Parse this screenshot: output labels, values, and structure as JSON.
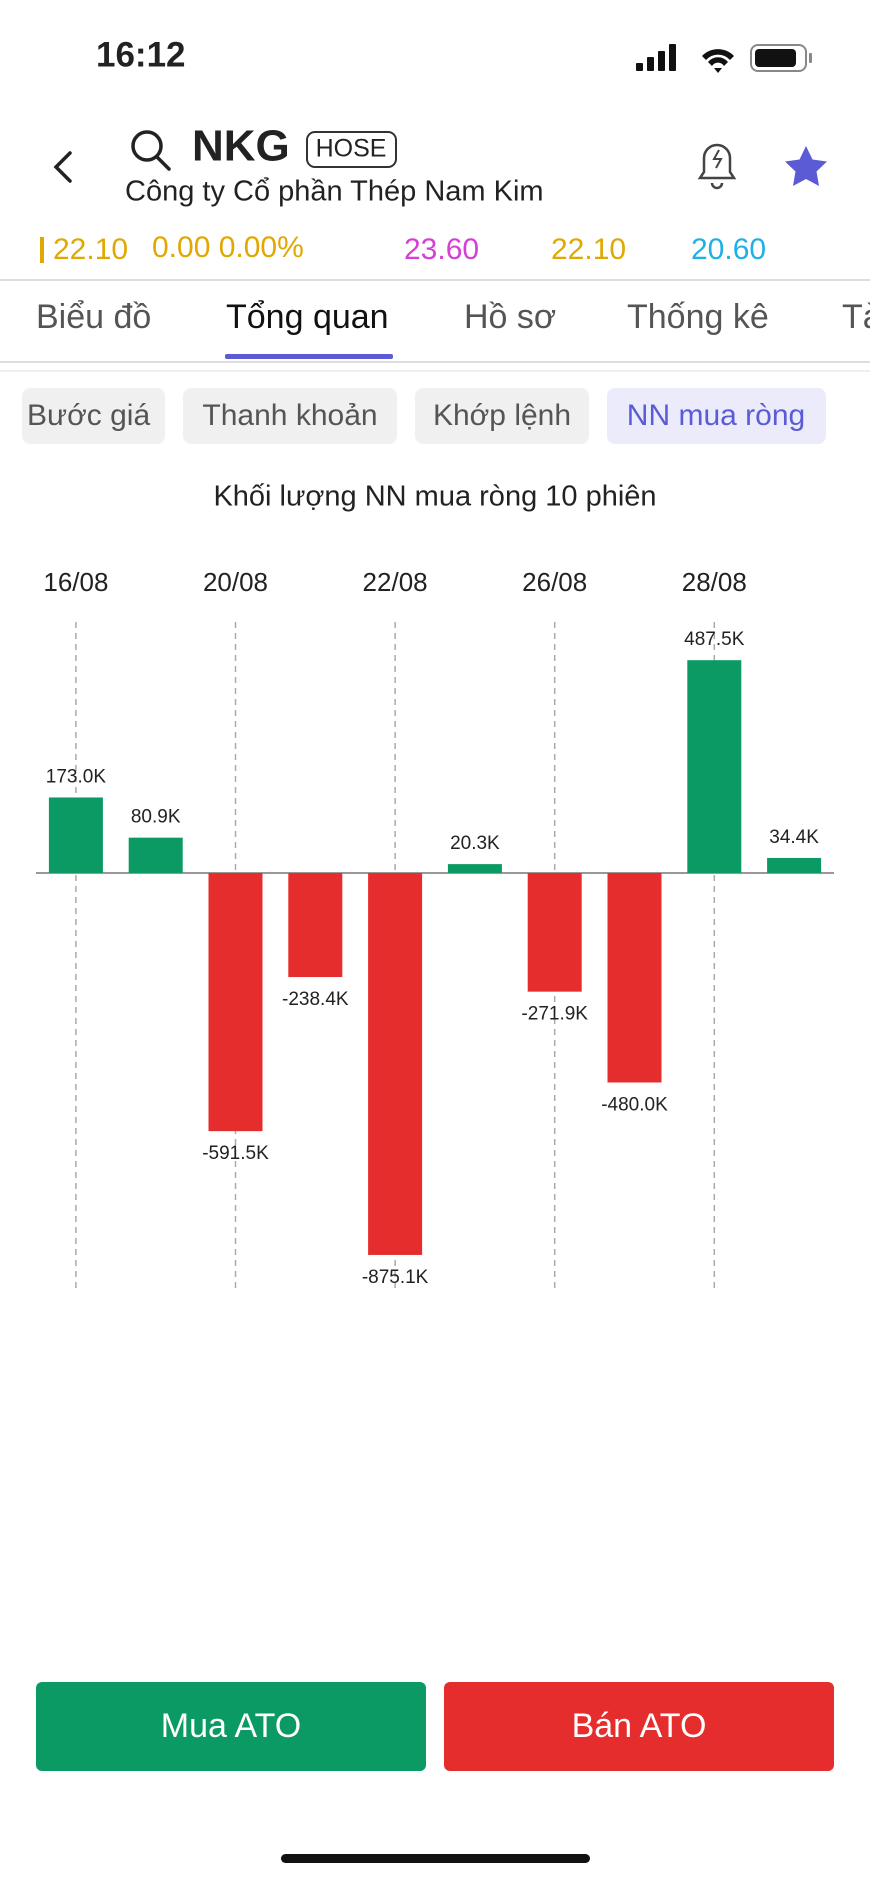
{
  "status_bar": {
    "time": "16:12"
  },
  "header": {
    "symbol": "NKG",
    "exchange": "HOSE",
    "company": "Công ty Cổ phần Thép Nam Kim"
  },
  "price_row": [
    "22.10",
    "0.00 0.00%",
    "23.60",
    "22.10",
    "20.60"
  ],
  "tabs": [
    "Biểu đồ",
    "Tổng quan",
    "Hồ sơ",
    "Thống kê",
    "Tà"
  ],
  "sub_tabs": [
    "Bước giá",
    "Thanh khoản",
    "Khớp lệnh",
    "NN mua ròng"
  ],
  "chart_data": {
    "type": "bar",
    "title": "Khối lượng NN mua ròng 10 phiên",
    "categories": [
      "16/08",
      null,
      "20/08",
      null,
      "22/08",
      null,
      "26/08",
      null,
      "28/08",
      null
    ],
    "values": [
      173000,
      80900,
      -591500,
      -238400,
      -875100,
      20300,
      -271900,
      -480000,
      487500,
      34400
    ],
    "value_labels": [
      "173.0K",
      "80.9K",
      "-591.5K",
      "-238.4K",
      "-875.1K",
      "20.3K",
      "-271.9K",
      "-480.0K",
      "487.5K",
      "34.4K"
    ],
    "color": "#0b9a63",
    "negative_color": "#e62d2d",
    "ylim": [
      -960000,
      575000
    ]
  },
  "buttons": [
    "Mua ATO",
    "Bán ATO"
  ]
}
